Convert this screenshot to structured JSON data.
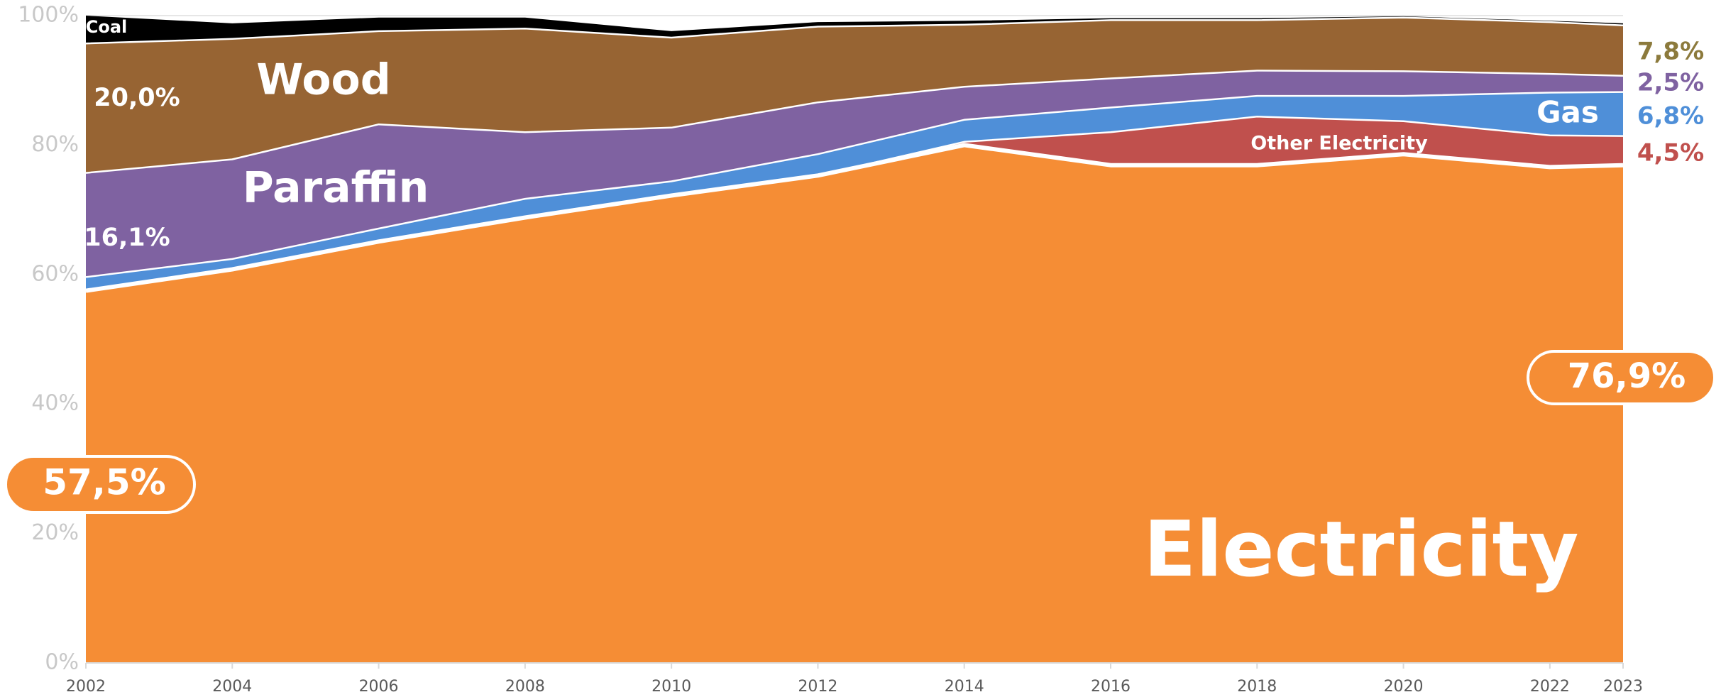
{
  "chart_data": {
    "type": "stacked_area",
    "x": [
      2002,
      2004,
      2006,
      2008,
      2010,
      2012,
      2014,
      2016,
      2018,
      2020,
      2022,
      2023
    ],
    "xlim": [
      2002,
      2023
    ],
    "xticks": [
      2002,
      2004,
      2006,
      2008,
      2010,
      2012,
      2014,
      2016,
      2018,
      2020,
      2022,
      2023
    ],
    "ylim": [
      0,
      100
    ],
    "yticks": [
      {
        "value": 0,
        "label": "0%"
      },
      {
        "value": 20,
        "label": "20%"
      },
      {
        "value": 40,
        "label": "40%"
      },
      {
        "value": 60,
        "label": "60%"
      },
      {
        "value": 80,
        "label": "80%"
      },
      {
        "value": 100,
        "label": "100%"
      }
    ],
    "grid": false,
    "series": [
      {
        "name": "Electricity",
        "color": "#f58d35",
        "values": [
          57.5,
          60.8,
          65.1,
          68.8,
          72.2,
          75.3,
          80.0,
          76.9,
          76.9,
          78.6,
          76.6,
          76.9
        ],
        "value_labels": [
          "57,5%",
          null,
          null,
          null,
          null,
          null,
          null,
          null,
          null,
          null,
          null,
          "76,9%"
        ]
      },
      {
        "name": "Other Electricity",
        "color": "#c0504d",
        "values": [
          0,
          0,
          0,
          0,
          0,
          0,
          0.5,
          5.1,
          7.5,
          5.1,
          4.9,
          4.5
        ],
        "value_labels": [
          null,
          null,
          null,
          null,
          null,
          null,
          null,
          null,
          null,
          null,
          null,
          "4,5%"
        ]
      },
      {
        "name": "Gas",
        "color": "#4f8fd8",
        "values": [
          2.1,
          1.6,
          2.0,
          2.9,
          2.2,
          3.3,
          3.4,
          3.8,
          3.2,
          3.9,
          6.6,
          6.8
        ],
        "value_labels": [
          null,
          null,
          null,
          null,
          null,
          null,
          null,
          null,
          null,
          null,
          null,
          "6,8%"
        ]
      },
      {
        "name": "Paraffin",
        "color": "#7f62a1",
        "values": [
          16.1,
          15.4,
          16.1,
          10.3,
          8.3,
          8.0,
          5.1,
          4.5,
          3.9,
          3.8,
          2.9,
          2.5
        ],
        "value_labels": [
          "16,1%",
          null,
          null,
          null,
          null,
          null,
          null,
          null,
          null,
          null,
          null,
          "2,5%"
        ]
      },
      {
        "name": "Wood",
        "color": "#976433",
        "values": [
          20.0,
          18.6,
          14.4,
          16.0,
          13.9,
          11.7,
          9.6,
          9.0,
          7.8,
          8.3,
          8.0,
          7.8
        ],
        "value_labels": [
          "20,0%",
          null,
          null,
          null,
          null,
          null,
          null,
          null,
          null,
          null,
          null,
          "7,8%"
        ]
      },
      {
        "name": "Coal",
        "color": "#000000",
        "values": [
          4.3,
          2.4,
          2.1,
          1.7,
          1.0,
          0.7,
          0.6,
          0.3,
          0.3,
          0.2,
          0.2,
          0.3
        ]
      }
    ]
  }
}
